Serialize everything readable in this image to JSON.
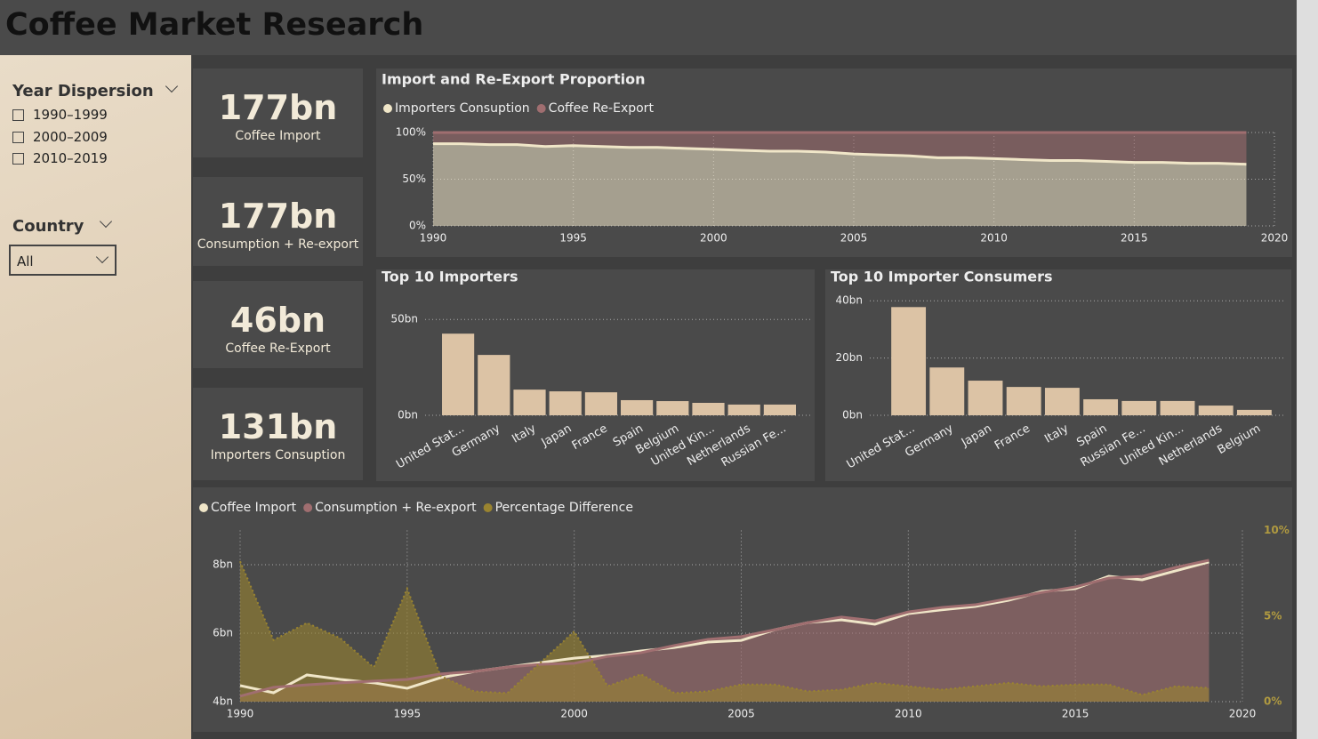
{
  "header": {
    "title": "Coffee Market Research"
  },
  "slicers": [
    {
      "title": "Year Dispersion",
      "options": [
        "1990–1999",
        "2000–2009",
        "2010–2019"
      ]
    },
    {
      "title": "Country",
      "selected": "All"
    }
  ],
  "kpis": [
    {
      "value": "177bn",
      "label": "Coffee Import"
    },
    {
      "value": "177bn",
      "label": "Consumption + Re-export"
    },
    {
      "value": "46bn",
      "label": "Coffee Re-Export"
    },
    {
      "value": "131bn",
      "label": "Importers Consuption"
    }
  ],
  "chart_data": [
    {
      "type": "area",
      "stacked": true,
      "title": "Import and Re-Export Proportion",
      "x": [
        1990,
        1991,
        1992,
        1993,
        1994,
        1995,
        1996,
        1997,
        1998,
        1999,
        2000,
        2001,
        2002,
        2003,
        2004,
        2005,
        2006,
        2007,
        2008,
        2009,
        2010,
        2011,
        2012,
        2013,
        2014,
        2015,
        2016,
        2017,
        2018,
        2019
      ],
      "series": [
        {
          "name": "Importers Consuption",
          "color": "#f0e6c8",
          "area": true,
          "values": [
            88,
            88,
            87,
            87,
            85,
            86,
            85,
            84,
            84,
            83,
            82,
            81,
            80,
            80,
            79,
            77,
            76,
            75,
            73,
            73,
            72,
            71,
            70,
            70,
            69,
            68,
            68,
            67,
            67,
            66
          ]
        },
        {
          "name": "Coffee Re-Export",
          "color": "#a06e70",
          "area": true,
          "values": [
            12,
            12,
            13,
            13,
            15,
            14,
            15,
            16,
            16,
            17,
            18,
            19,
            20,
            20,
            21,
            23,
            24,
            25,
            27,
            27,
            28,
            29,
            30,
            30,
            31,
            32,
            32,
            33,
            33,
            34
          ]
        }
      ],
      "xlim": [
        1990,
        2020
      ],
      "xticks": [
        1990,
        1995,
        2000,
        2005,
        2010,
        2015,
        2020
      ],
      "ylim": [
        0,
        100
      ],
      "yticks": [
        {
          "value": 0,
          "label": "0%"
        },
        {
          "value": 50,
          "label": "50%"
        },
        {
          "value": 100,
          "label": "100%"
        }
      ],
      "grid": true,
      "xgrid": true
    },
    {
      "type": "bar",
      "title": "Top 10 Importers",
      "color": "#dcc3a5",
      "categories": [
        "United Stat...",
        "Germany",
        "Italy",
        "Japan",
        "France",
        "Spain",
        "Belgium",
        "United Kin...",
        "Netherlands",
        "Russian Fe..."
      ],
      "values": [
        42.6,
        31.5,
        13.4,
        12.5,
        12.0,
        7.9,
        7.4,
        6.5,
        5.6,
        5.6
      ],
      "ylim": [
        0,
        58
      ],
      "yticks": [
        {
          "value": 0,
          "label": "0bn"
        },
        {
          "value": 50,
          "label": "50bn"
        }
      ],
      "grid": true
    },
    {
      "type": "bar",
      "title": "Top 10 Importer Consumers",
      "color": "#dcc3a5",
      "categories": [
        "United Stat...",
        "Germany",
        "Japan",
        "France",
        "Italy",
        "Spain",
        "Russian Fe...",
        "United Kin...",
        "Netherlands",
        "Belgium"
      ],
      "values": [
        37.8,
        16.7,
        12.1,
        9.9,
        9.6,
        5.6,
        5.0,
        5.0,
        3.4,
        1.9
      ],
      "ylim": [
        0,
        41
      ],
      "yticks": [
        {
          "value": 0,
          "label": "0bn"
        },
        {
          "value": 20,
          "label": "20bn"
        },
        {
          "value": 40,
          "label": "40bn"
        }
      ],
      "grid": true
    },
    {
      "type": "area",
      "stacked": false,
      "x": [
        1990,
        1991,
        1992,
        1993,
        1994,
        1995,
        1996,
        1997,
        1998,
        1999,
        2000,
        2001,
        2002,
        2003,
        2004,
        2005,
        2006,
        2007,
        2008,
        2009,
        2010,
        2011,
        2012,
        2013,
        2014,
        2015,
        2016,
        2017,
        2018,
        2019
      ],
      "series": [
        {
          "name": "Coffee Import",
          "color": "#f0e6c8",
          "values": [
            4.47,
            4.26,
            4.78,
            4.65,
            4.55,
            4.39,
            4.7,
            4.88,
            5.01,
            5.14,
            5.27,
            5.35,
            5.48,
            5.58,
            5.74,
            5.79,
            6.1,
            6.31,
            6.39,
            6.26,
            6.57,
            6.68,
            6.78,
            6.96,
            7.22,
            7.3,
            7.66,
            7.56,
            7.82,
            8.08
          ]
        },
        {
          "name": "Consumption + Re-export",
          "color": "#a06e70",
          "area": true,
          "values": [
            4.16,
            4.42,
            4.49,
            4.55,
            4.6,
            4.65,
            4.81,
            4.88,
            5.01,
            5.09,
            5.12,
            5.32,
            5.43,
            5.64,
            5.82,
            5.9,
            6.1,
            6.31,
            6.47,
            6.36,
            6.62,
            6.75,
            6.83,
            7.01,
            7.19,
            7.35,
            7.61,
            7.66,
            7.92,
            8.13
          ]
        },
        {
          "name": "Percentage Difference",
          "color": "#9a8430",
          "area": true,
          "axis": "y2",
          "values": [
            8.2,
            3.6,
            4.6,
            3.7,
            2.0,
            6.6,
            1.5,
            0.6,
            0.5,
            2.3,
            4.1,
            0.9,
            1.6,
            0.5,
            0.6,
            1.0,
            1.0,
            0.6,
            0.7,
            1.1,
            0.9,
            0.7,
            0.9,
            1.1,
            0.9,
            1.0,
            1.0,
            0.4,
            0.9,
            0.8
          ]
        }
      ],
      "xlim": [
        1990,
        2020
      ],
      "xticks": [
        1990,
        1995,
        2000,
        2005,
        2010,
        2015,
        2020
      ],
      "ylim": [
        4,
        9
      ],
      "yticks": [
        {
          "value": 4,
          "label": "4bn"
        },
        {
          "value": 6,
          "label": "6bn"
        },
        {
          "value": 8,
          "label": "8bn"
        }
      ],
      "y2lim": [
        0,
        10
      ],
      "y2ticks": [
        {
          "value": 0,
          "label": "0%"
        },
        {
          "value": 5,
          "label": "5%"
        },
        {
          "value": 10,
          "label": "10%"
        }
      ],
      "grid": true,
      "xgrid": true
    }
  ]
}
